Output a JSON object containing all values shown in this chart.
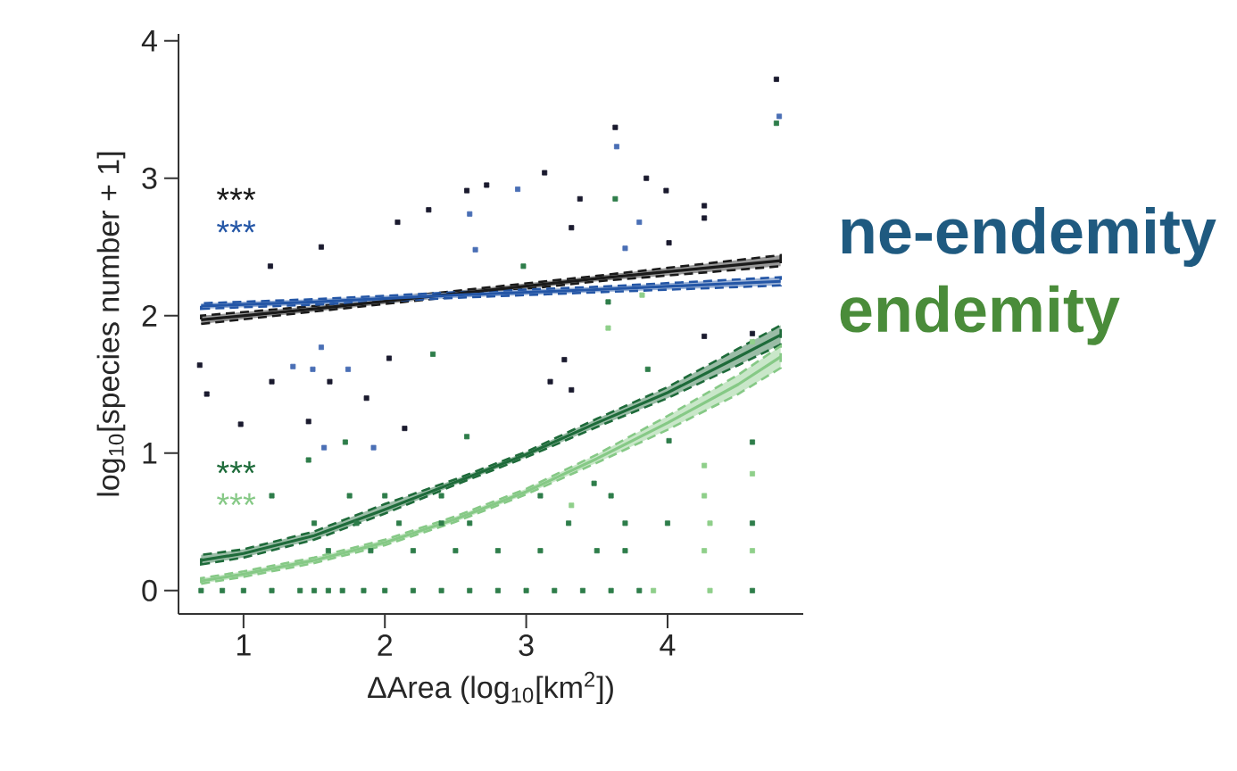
{
  "chart_data": {
    "type": "scatter",
    "xlabel": "ΔArea (log$_{10}$[km$^{2}$])",
    "ylabel": "log$_{10}$[species number + 1]",
    "xlim": [
      0.54,
      4.96
    ],
    "ylim": [
      -0.17,
      4.05
    ],
    "xticks": [
      1,
      2,
      3,
      4
    ],
    "yticks": [
      0,
      1,
      2,
      3,
      4
    ],
    "marker": "square",
    "series": [
      {
        "type": "line",
        "color": "#1a1a1a",
        "marker": "none",
        "line_style": "solid",
        "x": [
          0.7,
          1.5,
          2.5,
          3.5,
          4.8
        ],
        "values": [
          1.97,
          2.05,
          2.16,
          2.27,
          2.4
        ],
        "lower": [
          1.94,
          2.03,
          2.14,
          2.25,
          2.36
        ],
        "upper": [
          2.0,
          2.07,
          2.18,
          2.29,
          2.44
        ]
      },
      {
        "type": "line",
        "color": "#2456a6",
        "marker": "none",
        "line_style": "solid",
        "x": [
          0.7,
          1.5,
          2.5,
          3.5,
          4.8
        ],
        "values": [
          2.07,
          2.1,
          2.15,
          2.19,
          2.25
        ],
        "lower": [
          2.05,
          2.08,
          2.13,
          2.17,
          2.22
        ],
        "upper": [
          2.09,
          2.12,
          2.17,
          2.21,
          2.28
        ]
      },
      {
        "type": "line",
        "color": "#1e6b3a",
        "marker": "none",
        "line_style": "solid",
        "x": [
          0.7,
          1.0,
          1.5,
          2.0,
          2.5,
          3.0,
          3.5,
          4.0,
          4.5,
          4.8
        ],
        "values": [
          0.22,
          0.27,
          0.4,
          0.59,
          0.79,
          0.99,
          1.22,
          1.44,
          1.7,
          1.86
        ],
        "lower": [
          0.19,
          0.24,
          0.37,
          0.56,
          0.77,
          0.97,
          1.19,
          1.4,
          1.64,
          1.79
        ],
        "upper": [
          0.26,
          0.3,
          0.43,
          0.63,
          0.81,
          1.01,
          1.25,
          1.48,
          1.76,
          1.93
        ]
      },
      {
        "type": "line",
        "color": "#86c986",
        "marker": "none",
        "line_style": "solid",
        "x": [
          0.7,
          1.0,
          1.5,
          2.0,
          2.5,
          3.0,
          3.5,
          4.0,
          4.5,
          4.8
        ],
        "values": [
          0.07,
          0.12,
          0.22,
          0.35,
          0.52,
          0.72,
          0.96,
          1.22,
          1.5,
          1.7
        ],
        "lower": [
          0.05,
          0.1,
          0.2,
          0.33,
          0.5,
          0.7,
          0.93,
          1.17,
          1.43,
          1.62
        ],
        "upper": [
          0.09,
          0.14,
          0.24,
          0.37,
          0.54,
          0.74,
          0.99,
          1.27,
          1.57,
          1.78
        ]
      },
      {
        "color": "#1a1a2e",
        "x": [
          4.77,
          3.63,
          3.13,
          3.85,
          1.19,
          1.55,
          2.72,
          2.58,
          3.99,
          4.26,
          3.38,
          2.09,
          2.31,
          4.26,
          4.01,
          3.32,
          0.69,
          0.74,
          0.98,
          1.2,
          1.61,
          1.87,
          2.03,
          2.14,
          3.17,
          3.32,
          1.46,
          4.26,
          4.6,
          3.27
        ],
        "values": [
          3.72,
          3.37,
          3.04,
          3.0,
          2.36,
          2.5,
          2.95,
          2.91,
          2.91,
          2.8,
          2.85,
          2.68,
          2.77,
          2.71,
          2.53,
          2.64,
          1.64,
          1.43,
          1.21,
          1.52,
          1.52,
          1.4,
          1.69,
          1.18,
          1.52,
          1.46,
          1.23,
          1.85,
          1.87,
          1.68
        ]
      },
      {
        "color": "#4a6fb5",
        "x": [
          3.64,
          4.79,
          2.6,
          2.94,
          3.8,
          1.49,
          1.55,
          1.74,
          1.92,
          1.57,
          1.35,
          2.64,
          3.7
        ],
        "values": [
          3.23,
          3.45,
          2.74,
          2.92,
          2.68,
          1.61,
          1.77,
          1.61,
          1.04,
          1.04,
          1.63,
          2.48,
          2.49
        ]
      },
      {
        "color": "#2e7d4a",
        "x": [
          0.7,
          0.85,
          1.0,
          1.2,
          1.4,
          1.5,
          1.6,
          1.7,
          1.85,
          2.0,
          2.2,
          2.4,
          2.6,
          2.8,
          3.0,
          3.2,
          3.4,
          3.6,
          3.8,
          4.6,
          4.77,
          3.63,
          3.58,
          2.98,
          1.5,
          1.8,
          2.1,
          2.4,
          2.6,
          3.3,
          3.7,
          4.0,
          4.6,
          1.2,
          1.75,
          2.0,
          2.4,
          3.1,
          3.6,
          1.6,
          1.9,
          2.2,
          2.5,
          2.8,
          3.1,
          3.5,
          3.7,
          2.34,
          3.86,
          1.72,
          2.58,
          4.01,
          4.6,
          1.46,
          3.48
        ],
        "values": [
          0,
          0,
          0,
          0,
          0,
          0,
          0,
          0,
          0,
          0,
          0,
          0,
          0,
          0,
          0,
          0,
          0,
          0,
          0,
          0,
          3.4,
          2.85,
          2.1,
          2.36,
          0.49,
          0.49,
          0.49,
          0.49,
          0.49,
          0.49,
          0.49,
          0.49,
          0.49,
          0.69,
          0.69,
          0.69,
          0.69,
          0.69,
          0.69,
          0.29,
          0.29,
          0.29,
          0.29,
          0.29,
          0.29,
          0.29,
          0.29,
          1.72,
          1.61,
          1.08,
          1.12,
          1.09,
          1.08,
          0.95,
          0.78
        ]
      },
      {
        "color": "#8fcf8a",
        "x": [
          4.6,
          4.26,
          4.26,
          4.6,
          4.3,
          3.9,
          3.58,
          3.32,
          3.82,
          4.6,
          4.3,
          4.26
        ],
        "values": [
          0.85,
          0.69,
          0.29,
          0.29,
          0,
          0,
          1.91,
          0.62,
          2.15,
          1.81,
          0.49,
          0.91
        ]
      }
    ],
    "annotations": [
      "***",
      "***",
      "***",
      "***",
      "ne-endemity",
      "endemity"
    ]
  }
}
